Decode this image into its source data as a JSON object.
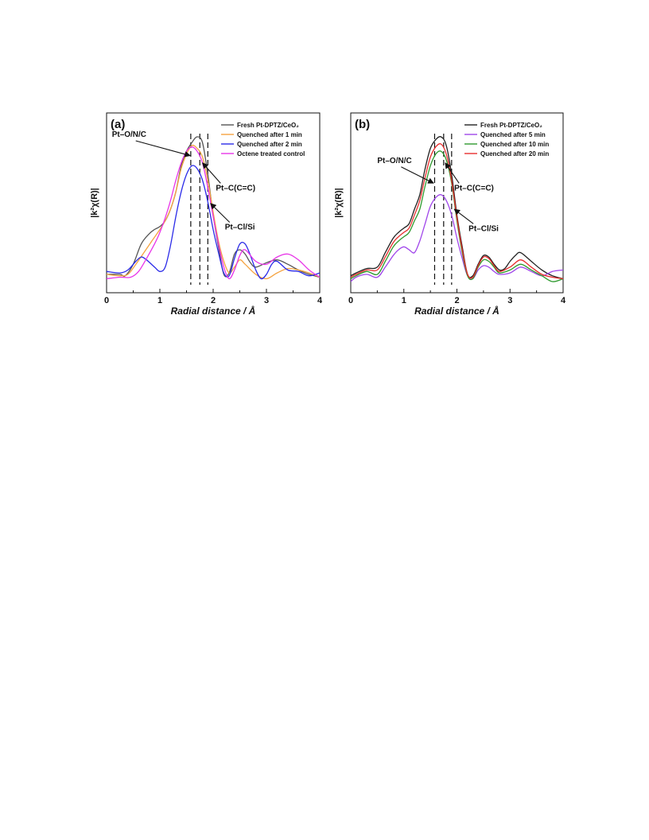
{
  "chart_data": [
    {
      "type": "line",
      "panel_label": "(a)",
      "xlabel": "Radial distance / Å",
      "ylabel": "|k²χ(R)|",
      "xlim": [
        0,
        4
      ],
      "xticks": [
        "0",
        "1",
        "2",
        "3",
        "4"
      ],
      "ylim": [
        0,
        1
      ],
      "grid": false,
      "legend_position": "top-right",
      "reference_lines_x": [
        1.58,
        1.75,
        1.9
      ],
      "annotations": [
        {
          "text": "Pt–O/N/C",
          "x": 0.1,
          "y": 1.0,
          "ax": 1.57,
          "ay": 0.87
        },
        {
          "text": "Pt–C(C=C)",
          "x": 2.05,
          "y": 0.63,
          "ax": 1.8,
          "ay": 0.82
        },
        {
          "text": "Pt–Cl/Si",
          "x": 2.22,
          "y": 0.36,
          "ax": 1.95,
          "ay": 0.54
        }
      ],
      "series": [
        {
          "name": "Fresh Pt-DPTZ/CeO₂",
          "color": "#555555",
          "x": [
            0,
            0.25,
            0.35,
            0.5,
            0.65,
            0.8,
            0.9,
            1.0,
            1.1,
            1.2,
            1.3,
            1.4,
            1.5,
            1.6,
            1.7,
            1.8,
            1.9,
            2.0,
            2.1,
            2.2,
            2.3,
            2.4,
            2.5,
            2.6,
            2.7,
            2.8,
            3.0,
            3.2,
            3.4,
            3.6,
            3.8,
            4.0
          ],
          "values": [
            0.05,
            0.05,
            0.04,
            0.12,
            0.26,
            0.33,
            0.36,
            0.38,
            0.42,
            0.5,
            0.62,
            0.8,
            0.9,
            0.96,
            1.0,
            0.96,
            0.74,
            0.46,
            0.24,
            0.05,
            0.06,
            0.19,
            0.22,
            0.19,
            0.13,
            0.1,
            0.13,
            0.15,
            0.12,
            0.08,
            0.05,
            0.03
          ]
        },
        {
          "name": "Quenched after 1 min",
          "color": "#f5a340",
          "x": [
            0,
            0.25,
            0.4,
            0.55,
            0.7,
            0.85,
            1.0,
            1.1,
            1.2,
            1.3,
            1.4,
            1.5,
            1.6,
            1.7,
            1.8,
            1.9,
            2.0,
            2.1,
            2.2,
            2.3,
            2.4,
            2.5,
            2.6,
            2.8,
            3.0,
            3.2,
            3.4,
            3.6,
            3.8,
            4.0
          ],
          "values": [
            0.05,
            0.04,
            0.05,
            0.12,
            0.2,
            0.28,
            0.36,
            0.42,
            0.5,
            0.62,
            0.78,
            0.88,
            0.94,
            0.92,
            0.86,
            0.7,
            0.48,
            0.28,
            0.14,
            0.06,
            0.1,
            0.15,
            0.12,
            0.05,
            0.02,
            0.06,
            0.09,
            0.08,
            0.06,
            0.03
          ]
        },
        {
          "name": "Quenched after 2 min",
          "color": "#2b2be8",
          "x": [
            0,
            0.25,
            0.4,
            0.55,
            0.65,
            0.75,
            0.9,
            1.0,
            1.1,
            1.2,
            1.3,
            1.4,
            1.5,
            1.6,
            1.7,
            1.8,
            1.9,
            2.0,
            2.1,
            2.2,
            2.3,
            2.4,
            2.5,
            2.6,
            2.7,
            2.8,
            2.9,
            3.0,
            3.1,
            3.2,
            3.4,
            3.6,
            3.8,
            4.0
          ],
          "values": [
            0.07,
            0.06,
            0.08,
            0.14,
            0.17,
            0.15,
            0.1,
            0.07,
            0.1,
            0.25,
            0.45,
            0.62,
            0.74,
            0.8,
            0.78,
            0.7,
            0.55,
            0.36,
            0.2,
            0.06,
            0.04,
            0.16,
            0.26,
            0.26,
            0.18,
            0.08,
            0.02,
            0.05,
            0.12,
            0.14,
            0.08,
            0.07,
            0.04,
            0.06
          ]
        },
        {
          "name": "Octene treated control",
          "color": "#e835e8",
          "x": [
            0,
            0.25,
            0.45,
            0.6,
            0.75,
            0.9,
            1.0,
            1.1,
            1.2,
            1.3,
            1.4,
            1.5,
            1.6,
            1.7,
            1.8,
            1.9,
            2.0,
            2.1,
            2.2,
            2.3,
            2.4,
            2.5,
            2.6,
            2.8,
            3.0,
            3.2,
            3.4,
            3.6,
            3.8,
            4.0
          ],
          "values": [
            0.02,
            0.03,
            0.03,
            0.07,
            0.16,
            0.26,
            0.34,
            0.44,
            0.56,
            0.7,
            0.82,
            0.9,
            0.93,
            0.9,
            0.82,
            0.65,
            0.45,
            0.26,
            0.1,
            0.02,
            0.08,
            0.18,
            0.22,
            0.14,
            0.12,
            0.17,
            0.19,
            0.15,
            0.08,
            0.03
          ]
        }
      ]
    },
    {
      "type": "line",
      "panel_label": "(b)",
      "xlabel": "Radial distance / Å",
      "ylabel": "|k²χ(R)|",
      "xlim": [
        0,
        4
      ],
      "xticks": [
        "0",
        "1",
        "2",
        "3",
        "4"
      ],
      "ylim": [
        0,
        1
      ],
      "grid": false,
      "legend_position": "top-right",
      "reference_lines_x": [
        1.58,
        1.75,
        1.9
      ],
      "annotations": [
        {
          "text": "Pt–O/N/C",
          "x": 0.5,
          "y": 0.82,
          "ax": 1.56,
          "ay": 0.68
        },
        {
          "text": "Pt–C(C=C)",
          "x": 1.95,
          "y": 0.63,
          "ax": 1.78,
          "ay": 0.82
        },
        {
          "text": "Pt–Cl/Si",
          "x": 2.22,
          "y": 0.35,
          "ax": 1.95,
          "ay": 0.5
        }
      ],
      "series": [
        {
          "name": "Fresh Pt-DPTZ/CeO₂",
          "color": "#222222",
          "x": [
            0,
            0.1,
            0.3,
            0.5,
            0.65,
            0.8,
            0.9,
            1.0,
            1.1,
            1.2,
            1.3,
            1.4,
            1.5,
            1.6,
            1.7,
            1.8,
            1.9,
            2.0,
            2.1,
            2.2,
            2.3,
            2.4,
            2.5,
            2.6,
            2.7,
            2.8,
            2.9,
            3.0,
            3.1,
            3.2,
            3.4,
            3.6,
            3.8,
            4.0
          ],
          "values": [
            0.04,
            0.06,
            0.09,
            0.1,
            0.2,
            0.3,
            0.34,
            0.37,
            0.4,
            0.5,
            0.6,
            0.78,
            0.92,
            0.98,
            1.0,
            0.94,
            0.74,
            0.46,
            0.24,
            0.05,
            0.04,
            0.12,
            0.18,
            0.17,
            0.12,
            0.08,
            0.09,
            0.14,
            0.18,
            0.2,
            0.14,
            0.08,
            0.04,
            0.02
          ]
        },
        {
          "name": "Quenched after 5 min",
          "color": "#a046ea",
          "x": [
            0,
            0.1,
            0.3,
            0.5,
            0.65,
            0.8,
            0.9,
            1.0,
            1.1,
            1.2,
            1.3,
            1.4,
            1.5,
            1.6,
            1.7,
            1.8,
            1.9,
            2.0,
            2.1,
            2.2,
            2.3,
            2.4,
            2.5,
            2.6,
            2.7,
            2.8,
            3.0,
            3.2,
            3.4,
            3.6,
            3.8,
            4.0
          ],
          "values": [
            0.0,
            0.03,
            0.05,
            0.03,
            0.1,
            0.18,
            0.22,
            0.24,
            0.22,
            0.2,
            0.28,
            0.4,
            0.52,
            0.58,
            0.6,
            0.56,
            0.46,
            0.3,
            0.16,
            0.04,
            0.02,
            0.08,
            0.11,
            0.1,
            0.07,
            0.05,
            0.06,
            0.1,
            0.07,
            0.04,
            0.07,
            0.08
          ]
        },
        {
          "name": "Quenched after 10 min",
          "color": "#2e9a2e",
          "x": [
            0,
            0.1,
            0.3,
            0.5,
            0.65,
            0.8,
            0.9,
            1.0,
            1.1,
            1.2,
            1.3,
            1.4,
            1.5,
            1.6,
            1.7,
            1.8,
            1.9,
            2.0,
            2.1,
            2.2,
            2.3,
            2.4,
            2.5,
            2.6,
            2.7,
            2.8,
            3.0,
            3.2,
            3.4,
            3.6,
            3.8,
            4.0
          ],
          "values": [
            0.02,
            0.04,
            0.07,
            0.05,
            0.14,
            0.24,
            0.28,
            0.31,
            0.34,
            0.42,
            0.5,
            0.66,
            0.8,
            0.88,
            0.9,
            0.84,
            0.68,
            0.42,
            0.2,
            0.04,
            0.02,
            0.1,
            0.15,
            0.14,
            0.1,
            0.06,
            0.08,
            0.12,
            0.08,
            0.04,
            0.0,
            0.02
          ]
        },
        {
          "name": "Quenched after 20 min",
          "color": "#e82e2e",
          "x": [
            0,
            0.1,
            0.3,
            0.5,
            0.65,
            0.8,
            0.9,
            1.0,
            1.1,
            1.2,
            1.3,
            1.4,
            1.5,
            1.6,
            1.7,
            1.8,
            1.9,
            2.0,
            2.1,
            2.2,
            2.3,
            2.4,
            2.5,
            2.6,
            2.7,
            2.8,
            3.0,
            3.2,
            3.4,
            3.6,
            3.8,
            4.0
          ],
          "values": [
            0.03,
            0.05,
            0.08,
            0.08,
            0.17,
            0.27,
            0.31,
            0.34,
            0.37,
            0.46,
            0.56,
            0.72,
            0.86,
            0.93,
            0.95,
            0.88,
            0.7,
            0.44,
            0.22,
            0.05,
            0.03,
            0.11,
            0.17,
            0.16,
            0.11,
            0.07,
            0.1,
            0.15,
            0.1,
            0.05,
            0.03,
            0.02
          ]
        }
      ]
    }
  ]
}
